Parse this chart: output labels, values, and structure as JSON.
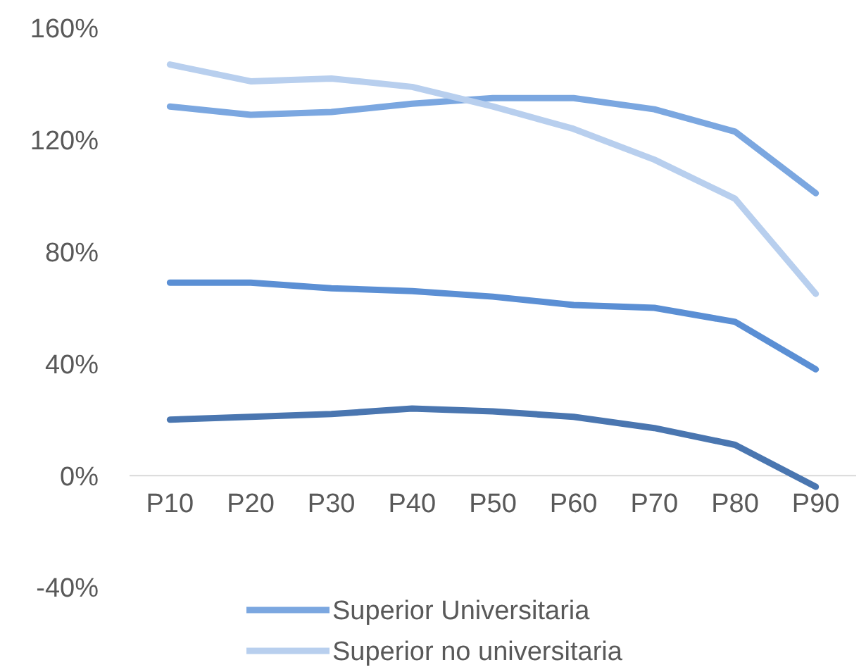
{
  "chart_data": {
    "type": "line",
    "categories": [
      "P10",
      "P20",
      "P30",
      "P40",
      "P50",
      "P60",
      "P70",
      "P80",
      "P90"
    ],
    "series": [
      {
        "name": "Superior Universitaria",
        "color": "#7ba7e0",
        "values": [
          132,
          129,
          130,
          133,
          135,
          135,
          131,
          123,
          101
        ]
      },
      {
        "name": "Superior no universitaria",
        "color": "#b8cfee",
        "values": [
          147,
          141,
          142,
          139,
          132,
          124,
          113,
          99,
          65
        ]
      },
      {
        "color": "#5b8fd4",
        "values": [
          69,
          69,
          67,
          66,
          64,
          61,
          60,
          55,
          38
        ]
      },
      {
        "color": "#4a76b0",
        "values": [
          20,
          21,
          22,
          24,
          23,
          21,
          17,
          11,
          -4
        ]
      }
    ],
    "ylim": [
      -40,
      160
    ],
    "yticks": [
      {
        "value": -40,
        "label": "-40%"
      },
      {
        "value": 0,
        "label": "0%"
      },
      {
        "value": 40,
        "label": "40%"
      },
      {
        "value": 80,
        "label": "80%"
      },
      {
        "value": 120,
        "label": "120%"
      },
      {
        "value": 160,
        "label": "160%"
      }
    ],
    "grid": false,
    "legend": "bottom",
    "line_style": "solid",
    "marker": "none"
  }
}
